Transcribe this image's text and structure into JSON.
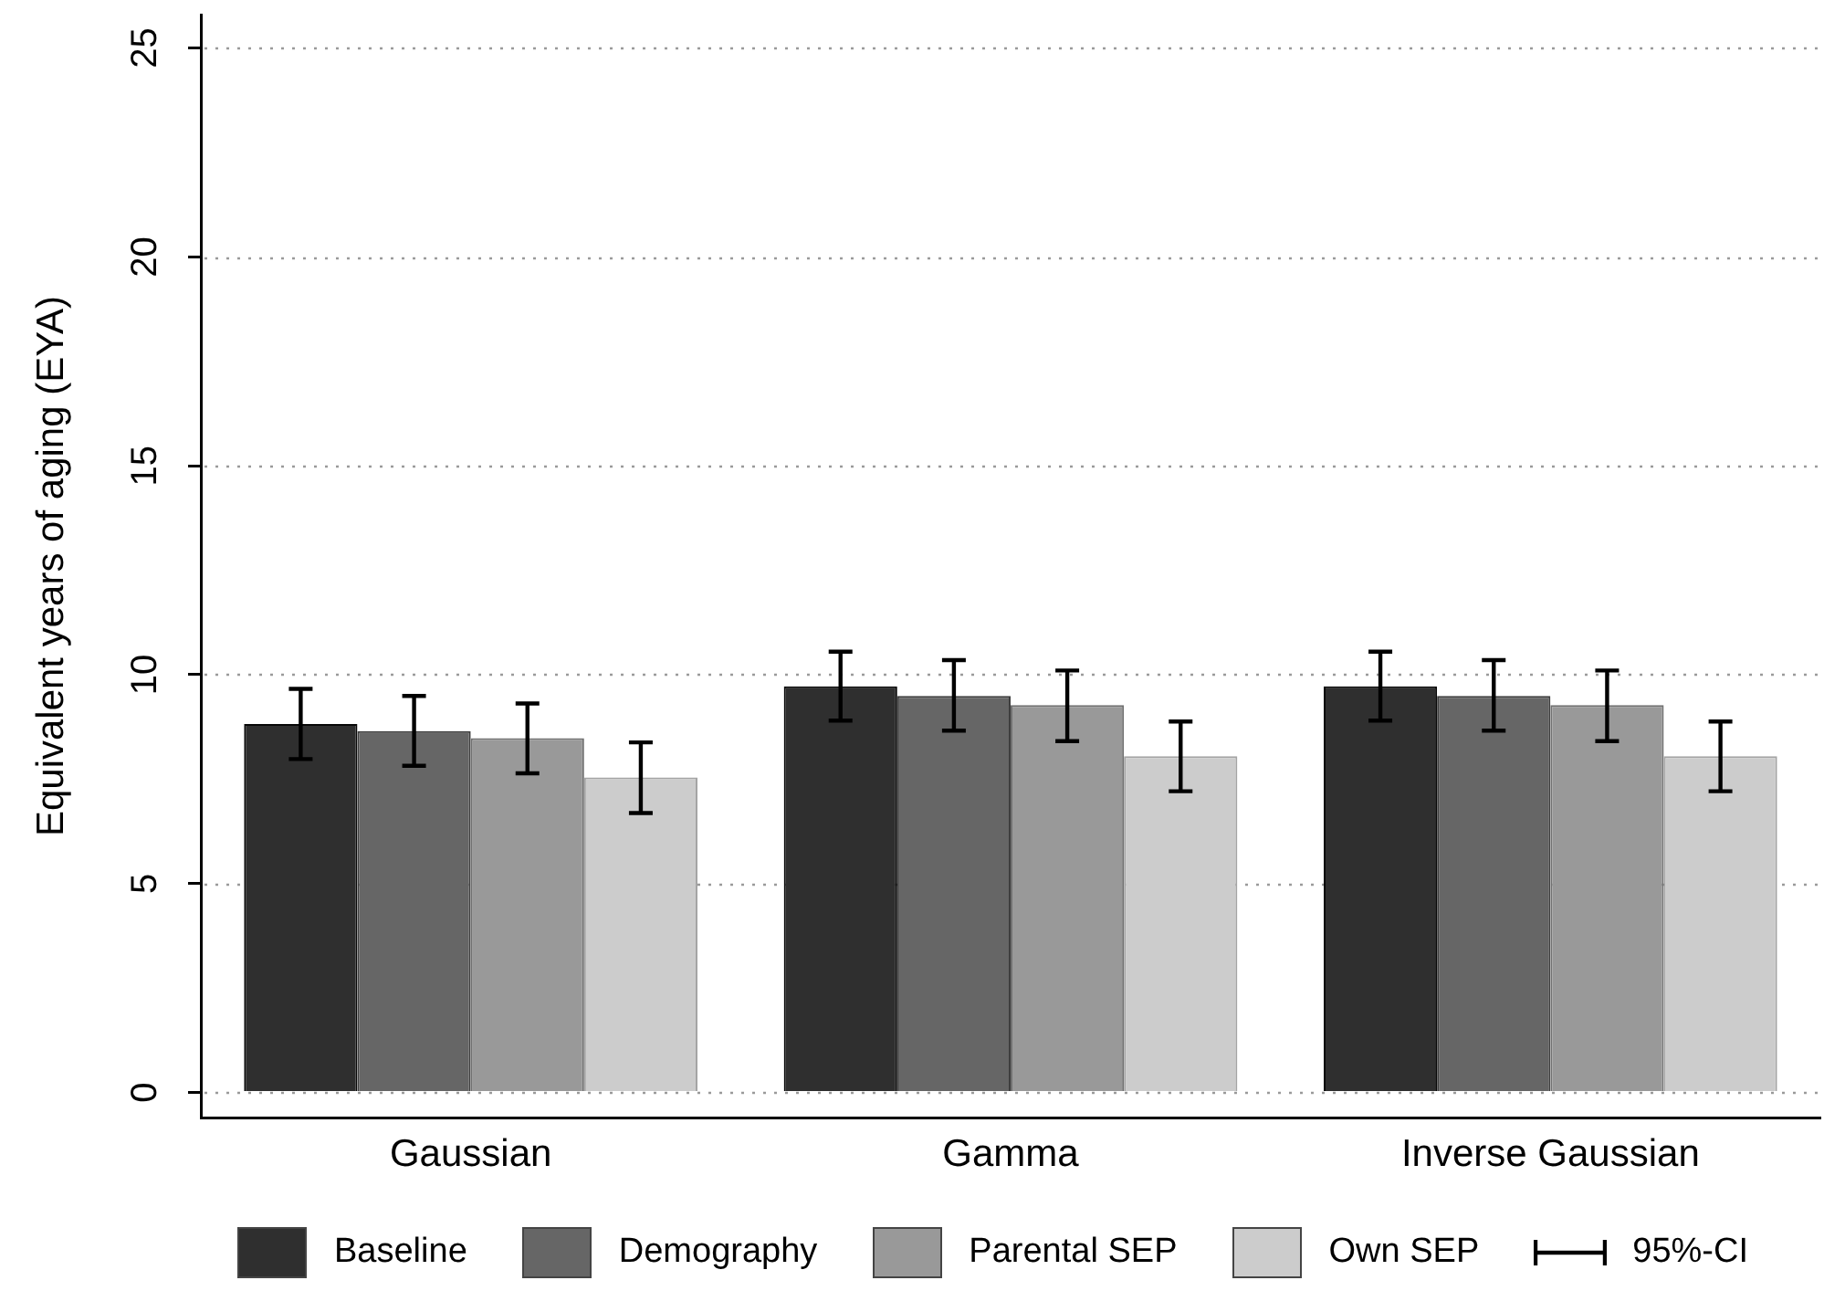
{
  "chart_data": {
    "type": "bar",
    "ylabel": "Equivalent years of aging (EYA)",
    "categories": [
      "Gaussian",
      "Gamma",
      "Inverse Gaussian"
    ],
    "series": [
      {
        "name": "Baseline",
        "color": "#2f2f2f",
        "values": [
          8.82,
          9.72,
          9.72
        ],
        "errors": [
          [
            7.98,
            9.66
          ],
          [
            8.9,
            10.55
          ],
          [
            8.9,
            10.55
          ]
        ]
      },
      {
        "name": "Demography",
        "color": "#666666",
        "values": [
          8.65,
          9.49,
          9.49
        ],
        "errors": [
          [
            7.82,
            9.49
          ],
          [
            8.66,
            10.35
          ],
          [
            8.66,
            10.35
          ]
        ]
      },
      {
        "name": "Parental SEP",
        "color": "#999999",
        "values": [
          8.48,
          9.27,
          9.27
        ],
        "errors": [
          [
            7.64,
            9.31
          ],
          [
            8.41,
            10.1
          ],
          [
            8.41,
            10.1
          ]
        ]
      },
      {
        "name": "Own SEP",
        "color": "#cccccc",
        "values": [
          7.54,
          8.05,
          8.05
        ],
        "errors": [
          [
            6.69,
            8.38
          ],
          [
            7.21,
            8.88
          ],
          [
            7.21,
            8.88
          ]
        ]
      }
    ],
    "ylim": [
      -0.6,
      25.8
    ],
    "yticks": [
      0,
      5,
      10,
      15,
      20,
      25
    ],
    "grid": "y",
    "legend": "bottom",
    "annotations": [
      "95%-CI"
    ]
  }
}
